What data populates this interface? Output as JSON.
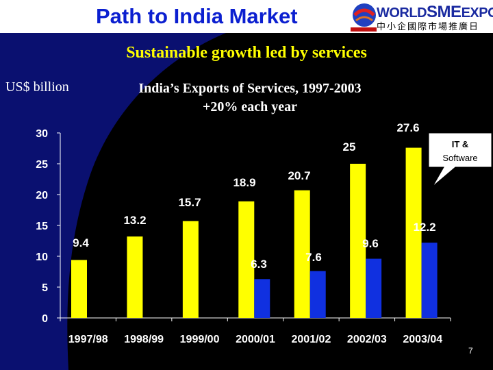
{
  "header": {
    "title": "Path to India Market"
  },
  "logo": {
    "world": "WORLD",
    "sme": "SME",
    "expo": "EXPO",
    "chinese": "中小企國際市場推廣日"
  },
  "slide": {
    "subtitle": "Sustainable growth led by services",
    "units": "US$ billion",
    "chart_title_line1": "India’s Exports of Services, 1997-2003",
    "chart_title_line2": "+20% each year",
    "callout": "IT & Software",
    "page_number": "7"
  },
  "colors": {
    "primary_bar": "#ffff00",
    "secondary_bar": "#1030e0",
    "background": "#000000",
    "curve": "#0a1070"
  },
  "chart_data": {
    "type": "bar",
    "categories": [
      "1997/98",
      "1998/99",
      "1999/00",
      "2000/01",
      "2001/02",
      "2002/03",
      "2003/04"
    ],
    "series": [
      {
        "values": [
          9.4,
          13.2,
          15.7,
          18.9,
          20.7,
          25,
          27.6
        ],
        "labels": [
          "9.4",
          "13.2",
          "15.7",
          "18.9",
          "20.7",
          "25",
          "27.6"
        ]
      },
      {
        "values": [
          null,
          null,
          null,
          6.3,
          7.6,
          9.6,
          12.2
        ],
        "labels": [
          "",
          "",
          "",
          "6.3",
          "7.6",
          "9.6",
          "12.2"
        ]
      }
    ],
    "ylim": [
      0,
      30
    ],
    "yticks": [
      "0",
      "5",
      "10",
      "15",
      "20",
      "25",
      "30"
    ],
    "yticks_values": [
      0,
      5,
      10,
      15,
      20,
      25,
      30
    ]
  }
}
